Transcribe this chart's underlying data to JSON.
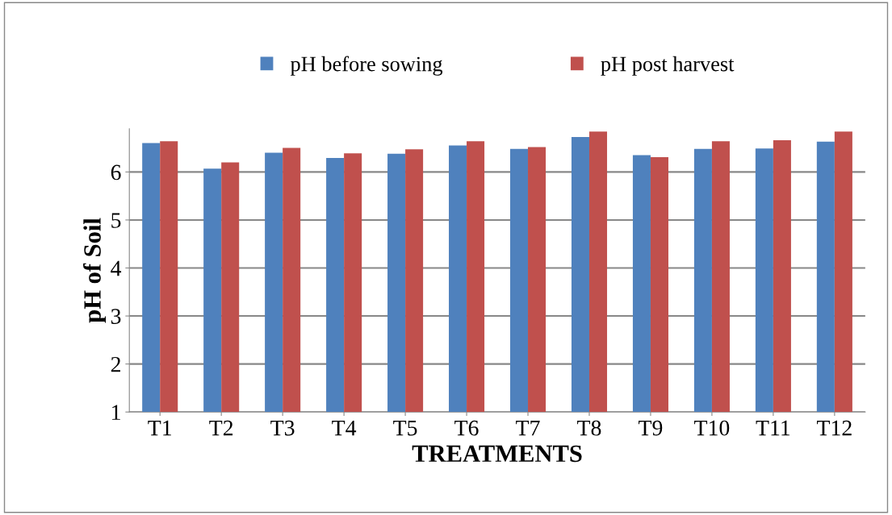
{
  "chart_data": {
    "type": "bar",
    "xlabel": "TREATMENTS",
    "ylabel": "pH of Soil",
    "categories": [
      "T1",
      "T2",
      "T3",
      "T4",
      "T5",
      "T6",
      "T7",
      "T8",
      "T9",
      "T10",
      "T11",
      "T12"
    ],
    "series": [
      {
        "name": "pH before sowing",
        "color": "#4f81bd",
        "values": [
          6.6,
          6.07,
          6.4,
          6.29,
          6.38,
          6.55,
          6.48,
          6.73,
          6.35,
          6.48,
          6.49,
          6.63
        ]
      },
      {
        "name": "pH post harvest",
        "color": "#c0504d",
        "values": [
          6.64,
          6.2,
          6.5,
          6.39,
          6.47,
          6.64,
          6.52,
          6.84,
          6.31,
          6.64,
          6.66,
          6.84
        ]
      }
    ],
    "ylim": [
      1,
      6.9
    ],
    "yticks": [
      1,
      2,
      3,
      4,
      5,
      6
    ],
    "grid": "y",
    "legend": "top"
  }
}
